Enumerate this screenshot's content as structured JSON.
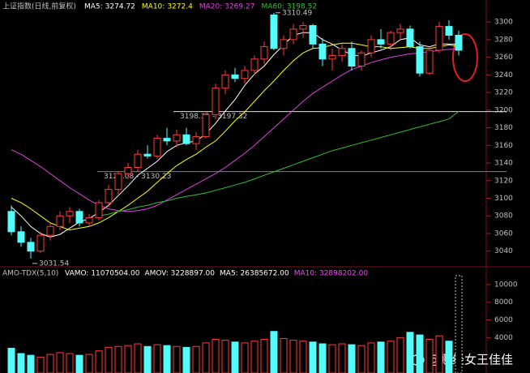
{
  "chart_data": [
    {
      "type": "candlestick",
      "title": "上证指数(日线,前复权)",
      "open": [
        3085,
        3062,
        3050,
        3040,
        3058,
        3068,
        3080,
        3085,
        3072,
        3078,
        3095,
        3110,
        3128,
        3135,
        3150,
        3148,
        3168,
        3165,
        3172,
        3162,
        3170,
        3195,
        3225,
        3240,
        3236,
        3245,
        3258,
        3308,
        3270,
        3280,
        3292,
        3296,
        3275,
        3258,
        3262,
        3270,
        3250,
        3265,
        3280,
        3275,
        3288,
        3292,
        3272,
        3242,
        3268,
        3295,
        3285
      ],
      "high": [
        3092,
        3068,
        3055,
        3062,
        3072,
        3085,
        3090,
        3088,
        3082,
        3098,
        3115,
        3130.23,
        3140,
        3155,
        3160,
        3172,
        3180,
        3178,
        3180,
        3175,
        3198.31,
        3230,
        3245,
        3248,
        3250,
        3262,
        3278,
        3310.49,
        3285,
        3298,
        3300,
        3298,
        3282,
        3270,
        3275,
        3278,
        3268,
        3285,
        3292,
        3290,
        3298,
        3296,
        3278,
        3272,
        3300,
        3302,
        3290
      ],
      "low": [
        3058,
        3045,
        3031.54,
        3038,
        3052,
        3064,
        3072,
        3068,
        3068,
        3075,
        3090,
        3105,
        3122,
        3130,
        3145,
        3145,
        3160,
        3158,
        3160,
        3155,
        3168,
        3190,
        3218,
        3232,
        3230,
        3240,
        3252,
        3268,
        3262,
        3275,
        3282,
        3270,
        3250,
        3245,
        3255,
        3245,
        3245,
        3260,
        3270,
        3268,
        3280,
        3270,
        3238,
        3240,
        3265,
        3280,
        3262
      ],
      "close": [
        3062,
        3050,
        3040,
        3058,
        3068,
        3080,
        3085,
        3072,
        3078,
        3095,
        3110,
        3128,
        3135,
        3150,
        3148,
        3168,
        3165,
        3172,
        3162,
        3170,
        3195,
        3225,
        3240,
        3236,
        3245,
        3258,
        3272,
        3270,
        3280,
        3292,
        3296,
        3275,
        3258,
        3262,
        3270,
        3250,
        3265,
        3280,
        3275,
        3288,
        3292,
        3272,
        3242,
        3268,
        3295,
        3285,
        3268
      ],
      "up_color": "#ff3c3c",
      "down_color": "#54fcfc",
      "series": [
        {
          "name": "MA5:",
          "color": "#ffffff",
          "values": [
            3090,
            3080,
            3068,
            3060,
            3056,
            3059,
            3066,
            3073,
            3077,
            3084,
            3092,
            3103,
            3114,
            3126,
            3134,
            3142,
            3153,
            3160,
            3163,
            3165,
            3173,
            3185,
            3199,
            3212,
            3228,
            3241,
            3250,
            3263,
            3274,
            3285,
            3288,
            3288,
            3280,
            3275,
            3268,
            3263,
            3261,
            3265,
            3268,
            3272,
            3280,
            3282,
            3274,
            3272,
            3275,
            3275,
            3274.72
          ]
        },
        {
          "name": "MA10:",
          "color": "#ffff00",
          "values": [
            3100,
            3095,
            3088,
            3080,
            3072,
            3068,
            3064,
            3066,
            3068,
            3072,
            3078,
            3085,
            3092,
            3100,
            3108,
            3118,
            3128,
            3137,
            3144,
            3150,
            3158,
            3165,
            3176,
            3188,
            3198,
            3210,
            3222,
            3233,
            3245,
            3256,
            3265,
            3270,
            3271,
            3274,
            3276,
            3276,
            3274,
            3272,
            3272,
            3270,
            3271,
            3272,
            3270,
            3270,
            3272,
            3274,
            3272.4
          ]
        },
        {
          "name": "MA20:",
          "color": "#e040e0",
          "values": [
            3155,
            3150,
            3143,
            3136,
            3128,
            3120,
            3112,
            3105,
            3098,
            3092,
            3088,
            3086,
            3085,
            3086,
            3088,
            3092,
            3098,
            3104,
            3110,
            3116,
            3122,
            3128,
            3135,
            3143,
            3151,
            3160,
            3170,
            3180,
            3190,
            3200,
            3210,
            3219,
            3226,
            3233,
            3240,
            3246,
            3250,
            3254,
            3257,
            3260,
            3262,
            3264,
            3265,
            3266,
            3268,
            3269,
            3269.27
          ]
        },
        {
          "name": "MA60:",
          "color": "#30c030",
          "values": [
            null,
            null,
            null,
            null,
            null,
            null,
            null,
            null,
            null,
            3080,
            3082,
            3085,
            3087,
            3090,
            3092,
            3095,
            3097,
            3100,
            3102,
            3104,
            3106,
            3109,
            3112,
            3115,
            3118,
            3122,
            3126,
            3130,
            3134,
            3138,
            3142,
            3146,
            3150,
            3154,
            3157,
            3160,
            3163,
            3166,
            3169,
            3172,
            3175,
            3178,
            3181,
            3184,
            3187,
            3190,
            3198.52
          ]
        }
      ],
      "hlines": [
        {
          "value": 3198.31,
          "label": "3198.31 - 3197.32",
          "color": "#e0e0e0"
        },
        {
          "value": 3130.23,
          "label": "3129.08 - 3130.23",
          "color": "#808080"
        }
      ],
      "annotations": [
        {
          "index": 27,
          "value": 3310.49
        },
        {
          "index": 2,
          "value": 3031.54
        }
      ],
      "ylim": [
        3025,
        3325
      ],
      "yticks": [
        3040,
        3060,
        3080,
        3100,
        3120,
        3140,
        3160,
        3180,
        3200,
        3220,
        3240,
        3260,
        3280,
        3300
      ]
    },
    {
      "type": "bar",
      "title": "AMO-TDX(5,10)",
      "indicators": [
        {
          "text": "VAMO: 11070504.00",
          "color": "#ffffff"
        },
        {
          "text": "AMOV: 3228897.00",
          "color": "#ffffff"
        },
        {
          "text": "MA5: 26385672.00",
          "color": "#ffffff"
        },
        {
          "text": "MA10: 32898202.00",
          "color": "#ff40ff"
        }
      ],
      "values": [
        2800,
        2200,
        2000,
        1800,
        2100,
        2300,
        2200,
        2000,
        2100,
        2500,
        2900,
        3000,
        3100,
        3300,
        3000,
        3200,
        3100,
        3000,
        2900,
        3000,
        3400,
        3800,
        3700,
        3500,
        3400,
        3600,
        3800,
        4700,
        3900,
        3700,
        3600,
        3500,
        3300,
        3200,
        3300,
        3200,
        3100,
        3400,
        3500,
        3600,
        4000,
        4600,
        4300,
        3800,
        4200,
        3600,
        11000
      ],
      "ylim": [
        0,
        11000
      ],
      "yticks": [
        4000,
        6000,
        8000,
        10000
      ]
    }
  ],
  "watermark": "@财经女王佳佳"
}
